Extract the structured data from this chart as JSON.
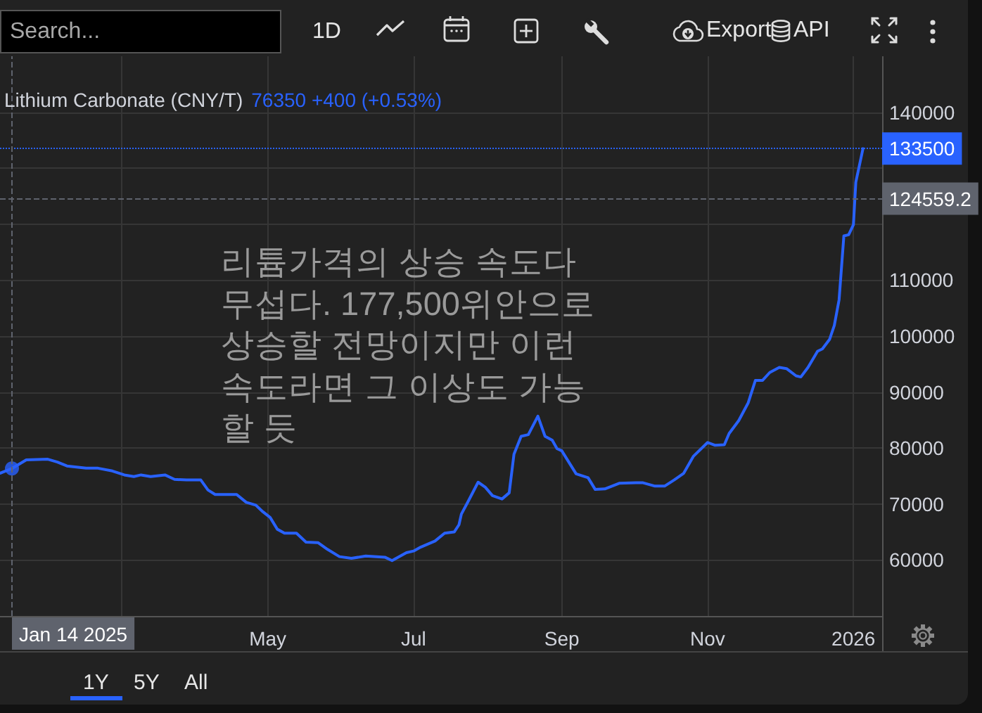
{
  "chart_data": {
    "type": "line",
    "title": "Lithium Carbonate (CNY/T)",
    "annotations": [
      "76350 +400 (+0.53%)",
      "리튬가격의 상승 속도다 무섭다. 177,500위안으로 상승할 전망이지만 이런 속도라면 그 이상도 가능할 듯",
      "Search...",
      "1D",
      "Export",
      "API",
      "1Y",
      "5Y",
      "All"
    ],
    "x": [
      "2025-01-09",
      "2025-01-14",
      "2025-01-20",
      "2025-01-29",
      "2025-02-02",
      "2025-02-06",
      "2025-02-14",
      "2025-02-19",
      "2025-02-25",
      "2025-03-02",
      "2025-03-06",
      "2025-03-09",
      "2025-03-13",
      "2025-03-19",
      "2025-03-23",
      "2025-03-28",
      "2025-04-03",
      "2025-04-06",
      "2025-04-09",
      "2025-04-18",
      "2025-04-22",
      "2025-04-26",
      "2025-04-29",
      "2025-05-02",
      "2025-05-05",
      "2025-05-08",
      "2025-05-13",
      "2025-05-17",
      "2025-05-22",
      "2025-05-26",
      "2025-05-31",
      "2025-06-05",
      "2025-06-11",
      "2025-06-19",
      "2025-06-22",
      "2025-06-28",
      "2025-07-01",
      "2025-07-04",
      "2025-07-10",
      "2025-07-14",
      "2025-07-18",
      "2025-07-20",
      "2025-07-21",
      "2025-07-24",
      "2025-07-28",
      "2025-07-31",
      "2025-08-03",
      "2025-08-07",
      "2025-08-10",
      "2025-08-12",
      "2025-08-15",
      "2025-08-18",
      "2025-08-22",
      "2025-08-25",
      "2025-08-28",
      "2025-08-30",
      "2025-09-01",
      "2025-09-07",
      "2025-09-12",
      "2025-09-15",
      "2025-09-19",
      "2025-09-25",
      "2025-10-02",
      "2025-10-05",
      "2025-10-10",
      "2025-10-14",
      "2025-10-18",
      "2025-10-22",
      "2025-10-26",
      "2025-11-01",
      "2025-11-04",
      "2025-11-08",
      "2025-11-10",
      "2025-11-14",
      "2025-11-18",
      "2025-11-21",
      "2025-11-24",
      "2025-11-27",
      "2025-12-01",
      "2025-12-04",
      "2025-12-08",
      "2025-12-10",
      "2025-12-13",
      "2025-12-17",
      "2025-12-19",
      "2025-12-22",
      "2025-12-24",
      "2025-12-26",
      "2025-12-28",
      "2025-12-30",
      "2026-01-01",
      "2026-01-02",
      "2026-01-05"
    ],
    "series": [
      {
        "color": "#2962ff",
        "values": [
          75500,
          76350,
          77900,
          78000,
          77500,
          76800,
          76400,
          76400,
          75900,
          75200,
          74900,
          75200,
          74900,
          75200,
          74400,
          74300,
          74300,
          72500,
          71700,
          71700,
          70300,
          69800,
          68600,
          67600,
          65500,
          64800,
          64800,
          63200,
          63100,
          61900,
          60600,
          60300,
          60700,
          60500,
          59900,
          61300,
          61600,
          62300,
          63400,
          64800,
          65000,
          66300,
          68200,
          70600,
          73900,
          73000,
          71500,
          70900,
          72000,
          78900,
          82100,
          82400,
          85700,
          82100,
          81400,
          79900,
          79500,
          75400,
          74700,
          72600,
          72700,
          73700,
          73800,
          73800,
          73200,
          73200,
          74300,
          75500,
          78500,
          81000,
          80500,
          80600,
          82600,
          84900,
          88100,
          92100,
          92100,
          93500,
          94400,
          94200,
          92900,
          92700,
          94400,
          97300,
          97700,
          99400,
          101900,
          106500,
          117900,
          118100,
          119900,
          127500,
          133500
        ]
      },
      {
        "type": "scatter",
        "x": [
          "2025-01-14"
        ],
        "values": [
          76350
        ],
        "color": "#2962ff",
        "marker": "circle"
      }
    ],
    "xlim": [
      "2025-01-09",
      "2026-01-13"
    ],
    "xticks": [
      {
        "value": "2025-03-01",
        "label": null
      },
      {
        "value": "2025-05-01",
        "label": "May"
      },
      {
        "value": "2025-07-01",
        "label": "Jul"
      },
      {
        "value": "2025-09-01",
        "label": "Sep"
      },
      {
        "value": "2025-11-01",
        "label": "Nov"
      },
      {
        "value": "2026-01-01",
        "label": "2026"
      }
    ],
    "ylim": [
      50000,
      150000
    ],
    "yticks": [
      60000,
      70000,
      80000,
      90000,
      100000,
      110000,
      {
        "value": 120000,
        "label": null
      },
      {
        "value": 130000,
        "label": null
      },
      140000
    ],
    "ref_lines": [
      {
        "axis": "y",
        "value": 133500,
        "label": "133500",
        "color": "#2962ff",
        "line_style": "dotted"
      },
      {
        "axis": "y",
        "value": 124559.2,
        "label": "124559.2",
        "color": "#5f636d",
        "line_style": "dashed"
      },
      {
        "axis": "x",
        "value": "2025-01-14",
        "label": "Jan 14 2025",
        "color": "#5f636d",
        "line_style": "dashed"
      }
    ],
    "grid": true,
    "marker": "none"
  }
}
